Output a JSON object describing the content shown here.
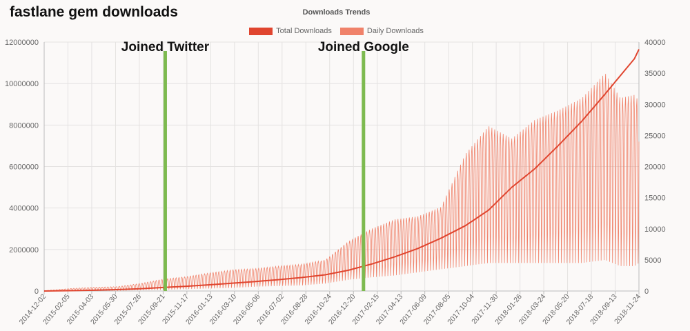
{
  "page": {
    "title": "fastlane gem downloads"
  },
  "chart_data": {
    "type": "line",
    "title": "Downloads Trends",
    "legend": {
      "placement": "top-center"
    },
    "grid": true,
    "x_axis": {
      "type": "date",
      "range": [
        "2014-12-02",
        "2018-12-05"
      ],
      "ticks": [
        "2014-12-02",
        "2015-02-05",
        "2015-04-03",
        "2015-05-30",
        "2015-07-26",
        "2015-09-21",
        "2015-11-17",
        "2016-01-13",
        "2016-03-10",
        "2016-05-06",
        "2016-07-02",
        "2016-08-28",
        "2016-10-24",
        "2016-12-20",
        "2017-02-15",
        "2017-04-13",
        "2017-06-09",
        "2017-08-05",
        "2017-10-04",
        "2017-11-30",
        "2018-01-26",
        "2018-03-24",
        "2018-05-20",
        "2018-07-18",
        "2018-09-13",
        "2018-11-24"
      ]
    },
    "y_axis_left": {
      "range": [
        0,
        12000000
      ],
      "ticks": [
        "0",
        "2000000",
        "4000000",
        "6000000",
        "8000000",
        "10000000",
        "12000000"
      ]
    },
    "y_axis_right": {
      "range": [
        0,
        40000
      ],
      "ticks": [
        "0",
        "5000",
        "10000",
        "15000",
        "20000",
        "25000",
        "30000",
        "35000",
        "40000"
      ]
    },
    "series": [
      {
        "name": "Total Downloads",
        "axis": "left",
        "color": "#e0452f",
        "points": [
          [
            "2014-12-02",
            0
          ],
          [
            "2015-02-05",
            15000
          ],
          [
            "2015-04-03",
            35000
          ],
          [
            "2015-05-30",
            65000
          ],
          [
            "2015-07-26",
            110000
          ],
          [
            "2015-09-21",
            170000
          ],
          [
            "2015-11-17",
            230000
          ],
          [
            "2016-01-13",
            300000
          ],
          [
            "2016-03-10",
            380000
          ],
          [
            "2016-05-06",
            460000
          ],
          [
            "2016-07-02",
            550000
          ],
          [
            "2016-08-28",
            650000
          ],
          [
            "2016-10-24",
            780000
          ],
          [
            "2016-12-20",
            1000000
          ],
          [
            "2017-02-15",
            1300000
          ],
          [
            "2017-04-13",
            1650000
          ],
          [
            "2017-06-09",
            2050000
          ],
          [
            "2017-08-05",
            2550000
          ],
          [
            "2017-10-04",
            3150000
          ],
          [
            "2017-11-30",
            3900000
          ],
          [
            "2018-01-26",
            5000000
          ],
          [
            "2018-03-24",
            5900000
          ],
          [
            "2018-05-20",
            7000000
          ],
          [
            "2018-07-18",
            8200000
          ],
          [
            "2018-09-13",
            9500000
          ],
          [
            "2018-11-24",
            11200000
          ],
          [
            "2018-12-05",
            11650000
          ]
        ]
      },
      {
        "name": "Daily Downloads",
        "axis": "right",
        "color": "#f0826a",
        "shape": "weekly-oscillating",
        "envelope": [
          [
            "2014-12-02",
            0,
            50
          ],
          [
            "2015-02-05",
            50,
            400
          ],
          [
            "2015-04-03",
            80,
            600
          ],
          [
            "2015-05-30",
            100,
            700
          ],
          [
            "2015-07-26",
            150,
            1200
          ],
          [
            "2015-09-21",
            200,
            1900
          ],
          [
            "2015-11-17",
            300,
            2300
          ],
          [
            "2016-01-13",
            400,
            2900
          ],
          [
            "2016-03-10",
            500,
            3400
          ],
          [
            "2016-05-06",
            700,
            3600
          ],
          [
            "2016-07-02",
            800,
            4000
          ],
          [
            "2016-08-28",
            900,
            4300
          ],
          [
            "2016-10-24",
            1200,
            5000
          ],
          [
            "2016-12-20",
            1800,
            8000
          ],
          [
            "2017-02-15",
            2200,
            10000
          ],
          [
            "2017-04-13",
            2500,
            11500
          ],
          [
            "2017-06-09",
            3000,
            12000
          ],
          [
            "2017-08-05",
            3500,
            13500
          ],
          [
            "2017-10-04",
            4000,
            22000
          ],
          [
            "2017-11-30",
            4500,
            26500
          ],
          [
            "2018-01-26",
            4500,
            24500
          ],
          [
            "2018-03-24",
            4500,
            27500
          ],
          [
            "2018-05-20",
            4500,
            29000
          ],
          [
            "2018-07-18",
            4500,
            31000
          ],
          [
            "2018-09-13",
            5000,
            35000
          ],
          [
            "2018-10-20",
            4000,
            31000
          ],
          [
            "2018-11-24",
            4000,
            31500
          ],
          [
            "2018-12-05",
            4500,
            30500
          ]
        ]
      }
    ],
    "annotations": [
      {
        "label": "Joined Twitter",
        "date": "2015-09-26",
        "color": "#7dba4f"
      },
      {
        "label": "Joined Google",
        "date": "2017-01-26",
        "color": "#7dba4f"
      }
    ]
  }
}
